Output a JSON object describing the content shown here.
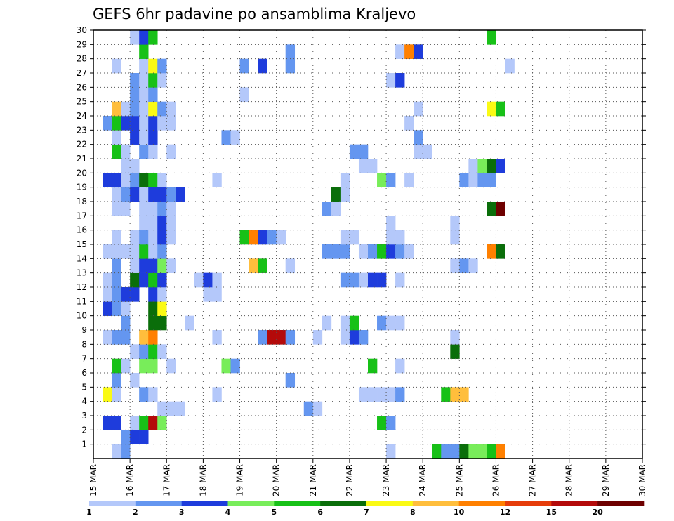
{
  "chart_data": {
    "type": "heatmap",
    "title": "GEFS 6hr padavine po ansamblima Kraljevo",
    "xlabel": "",
    "ylabel": "",
    "x_ticks": [
      "15 MAR",
      "16 MAR",
      "17 MAR",
      "18 MAR",
      "19 MAR",
      "20 MAR",
      "21 MAR",
      "22 MAR",
      "23 MAR",
      "24 MAR",
      "25 MAR",
      "26 MAR",
      "27 MAR",
      "28 MAR",
      "29 MAR",
      "30 MAR"
    ],
    "y_ticks": [
      1,
      2,
      3,
      4,
      5,
      6,
      7,
      8,
      9,
      10,
      11,
      12,
      13,
      14,
      15,
      16,
      17,
      18,
      19,
      20,
      21,
      22,
      23,
      24,
      25,
      26,
      27,
      28,
      29,
      30
    ],
    "xlim": [
      0,
      15
    ],
    "ylim": [
      0,
      30
    ],
    "grid": true,
    "legend_labels": [
      "1",
      "2",
      "3",
      "4",
      "5",
      "6",
      "7",
      "8",
      "10",
      "12",
      "15",
      "20"
    ],
    "legend_position": "bottom",
    "colors": [
      "#b4c8fa",
      "#6496f0",
      "#1e3cdc",
      "#78ed5a",
      "#17c117",
      "#0a6e0a",
      "#fafa14",
      "#ffbe3c",
      "#ff8000",
      "#e63c0a",
      "#b40a0a",
      "#6e0000"
    ],
    "members": [
      {
        "member": 1,
        "cells": [
          [
            1,
            0
          ],
          [
            2,
            0
          ],
          [
            2,
            1
          ],
          [
            31,
            0
          ],
          [
            36,
            4
          ],
          [
            37,
            1
          ],
          [
            38,
            1
          ],
          [
            39,
            5
          ],
          [
            40,
            3
          ],
          [
            41,
            3
          ],
          [
            42,
            4
          ],
          [
            43,
            8
          ]
        ]
      },
      {
        "member": 2,
        "cells": [
          [
            2,
            1
          ],
          [
            3,
            2
          ],
          [
            4,
            2
          ]
        ]
      },
      {
        "member": 3,
        "cells": [
          [
            0,
            2
          ],
          [
            1,
            2
          ],
          [
            3,
            0
          ],
          [
            4,
            4
          ],
          [
            5,
            10
          ],
          [
            6,
            3
          ],
          [
            30,
            4
          ],
          [
            31,
            1
          ]
        ]
      },
      {
        "member": 4,
        "cells": [
          [
            6,
            0
          ],
          [
            7,
            0
          ],
          [
            8,
            0
          ],
          [
            22,
            1
          ],
          [
            23,
            0
          ]
        ]
      },
      {
        "member": 5,
        "cells": [
          [
            0,
            6
          ],
          [
            1,
            0
          ],
          [
            4,
            1
          ],
          [
            5,
            0
          ],
          [
            12,
            0
          ],
          [
            28,
            0
          ],
          [
            29,
            0
          ],
          [
            30,
            0
          ],
          [
            31,
            0
          ],
          [
            32,
            1
          ],
          [
            37,
            4
          ],
          [
            38,
            7
          ],
          [
            39,
            7
          ]
        ]
      },
      {
        "member": 6,
        "cells": [
          [
            1,
            1
          ],
          [
            3,
            0
          ],
          [
            20,
            1
          ]
        ]
      },
      {
        "member": 7,
        "cells": [
          [
            1,
            4
          ],
          [
            2,
            0
          ],
          [
            4,
            3
          ],
          [
            5,
            3
          ],
          [
            7,
            0
          ],
          [
            13,
            3
          ],
          [
            14,
            1
          ],
          [
            29,
            4
          ],
          [
            32,
            0
          ]
        ]
      },
      {
        "member": 8,
        "cells": [
          [
            3,
            0
          ],
          [
            4,
            1
          ],
          [
            5,
            4
          ],
          [
            6,
            0
          ],
          [
            38,
            5
          ]
        ]
      },
      {
        "member": 9,
        "cells": [
          [
            0,
            0
          ],
          [
            1,
            1
          ],
          [
            2,
            1
          ],
          [
            4,
            7
          ],
          [
            5,
            8
          ],
          [
            12,
            0
          ],
          [
            17,
            1
          ],
          [
            18,
            10
          ],
          [
            19,
            10
          ],
          [
            20,
            1
          ],
          [
            23,
            0
          ],
          [
            26,
            0
          ],
          [
            27,
            2
          ],
          [
            28,
            1
          ],
          [
            38,
            0
          ]
        ]
      },
      {
        "member": 10,
        "cells": [
          [
            2,
            1
          ],
          [
            5,
            5
          ],
          [
            6,
            5
          ],
          [
            9,
            0
          ],
          [
            24,
            0
          ],
          [
            26,
            0
          ],
          [
            27,
            4
          ],
          [
            30,
            1
          ],
          [
            31,
            0
          ],
          [
            32,
            0
          ]
        ]
      },
      {
        "member": 11,
        "cells": [
          [
            0,
            2
          ],
          [
            1,
            1
          ],
          [
            2,
            0
          ],
          [
            5,
            5
          ],
          [
            6,
            6
          ]
        ]
      },
      {
        "member": 12,
        "cells": [
          [
            0,
            0
          ],
          [
            1,
            1
          ],
          [
            2,
            2
          ],
          [
            3,
            2
          ],
          [
            5,
            2
          ],
          [
            6,
            0
          ],
          [
            11,
            0
          ],
          [
            12,
            0
          ]
        ]
      },
      {
        "member": 13,
        "cells": [
          [
            0,
            0
          ],
          [
            1,
            1
          ],
          [
            3,
            5
          ],
          [
            4,
            2
          ],
          [
            5,
            4
          ],
          [
            6,
            2
          ],
          [
            10,
            0
          ],
          [
            11,
            2
          ],
          [
            12,
            0
          ],
          [
            26,
            1
          ],
          [
            27,
            1
          ],
          [
            28,
            0
          ],
          [
            29,
            2
          ],
          [
            30,
            2
          ],
          [
            32,
            0
          ]
        ]
      },
      {
        "member": 14,
        "cells": [
          [
            1,
            1
          ],
          [
            3,
            0
          ],
          [
            4,
            2
          ],
          [
            5,
            2
          ],
          [
            6,
            3
          ],
          [
            7,
            0
          ],
          [
            16,
            7
          ],
          [
            17,
            4
          ],
          [
            20,
            0
          ],
          [
            38,
            0
          ],
          [
            39,
            1
          ],
          [
            40,
            0
          ]
        ]
      },
      {
        "member": 15,
        "cells": [
          [
            0,
            0
          ],
          [
            1,
            0
          ],
          [
            2,
            0
          ],
          [
            3,
            0
          ],
          [
            4,
            4
          ],
          [
            5,
            0
          ],
          [
            6,
            1
          ],
          [
            24,
            1
          ],
          [
            25,
            1
          ],
          [
            26,
            1
          ],
          [
            28,
            0
          ],
          [
            29,
            1
          ],
          [
            30,
            4
          ],
          [
            31,
            2
          ],
          [
            32,
            1
          ],
          [
            33,
            0
          ],
          [
            42,
            8
          ],
          [
            43,
            5
          ]
        ]
      },
      {
        "member": 16,
        "cells": [
          [
            1,
            0
          ],
          [
            3,
            0
          ],
          [
            4,
            1
          ],
          [
            5,
            0
          ],
          [
            6,
            2
          ],
          [
            7,
            0
          ],
          [
            15,
            4
          ],
          [
            16,
            8
          ],
          [
            17,
            2
          ],
          [
            18,
            1
          ],
          [
            19,
            0
          ],
          [
            26,
            0
          ],
          [
            27,
            0
          ],
          [
            31,
            0
          ],
          [
            32,
            0
          ],
          [
            38,
            0
          ]
        ]
      },
      {
        "member": 17,
        "cells": [
          [
            4,
            0
          ],
          [
            5,
            0
          ],
          [
            6,
            2
          ],
          [
            7,
            0
          ],
          [
            31,
            0
          ],
          [
            38,
            0
          ]
        ]
      },
      {
        "member": 18,
        "cells": [
          [
            1,
            0
          ],
          [
            2,
            0
          ],
          [
            4,
            0
          ],
          [
            5,
            0
          ],
          [
            6,
            1
          ],
          [
            7,
            0
          ],
          [
            24,
            1
          ],
          [
            25,
            0
          ],
          [
            42,
            5
          ],
          [
            43,
            11
          ]
        ]
      },
      {
        "member": 19,
        "cells": [
          [
            1,
            0
          ],
          [
            2,
            1
          ],
          [
            3,
            2
          ],
          [
            4,
            0
          ],
          [
            5,
            2
          ],
          [
            6,
            2
          ],
          [
            7,
            1
          ],
          [
            8,
            2
          ],
          [
            25,
            5
          ],
          [
            26,
            0
          ]
        ]
      },
      {
        "member": 20,
        "cells": [
          [
            0,
            2
          ],
          [
            1,
            2
          ],
          [
            2,
            0
          ],
          [
            3,
            1
          ],
          [
            4,
            5
          ],
          [
            5,
            4
          ],
          [
            6,
            0
          ],
          [
            12,
            0
          ],
          [
            26,
            0
          ],
          [
            30,
            3
          ],
          [
            31,
            1
          ],
          [
            33,
            0
          ],
          [
            39,
            1
          ],
          [
            40,
            0
          ],
          [
            41,
            1
          ],
          [
            42,
            1
          ]
        ]
      },
      {
        "member": 21,
        "cells": [
          [
            2,
            0
          ],
          [
            3,
            0
          ],
          [
            28,
            0
          ],
          [
            29,
            0
          ],
          [
            40,
            0
          ],
          [
            41,
            3
          ],
          [
            42,
            5
          ],
          [
            43,
            2
          ]
        ]
      },
      {
        "member": 22,
        "cells": [
          [
            1,
            4
          ],
          [
            2,
            0
          ],
          [
            4,
            1
          ],
          [
            5,
            0
          ],
          [
            7,
            0
          ],
          [
            27,
            1
          ],
          [
            28,
            1
          ],
          [
            34,
            0
          ],
          [
            35,
            0
          ]
        ]
      },
      {
        "member": 23,
        "cells": [
          [
            1,
            0
          ],
          [
            3,
            2
          ],
          [
            4,
            0
          ],
          [
            5,
            2
          ],
          [
            13,
            1
          ],
          [
            14,
            0
          ],
          [
            34,
            1
          ]
        ]
      },
      {
        "member": 24,
        "cells": [
          [
            0,
            1
          ],
          [
            1,
            4
          ],
          [
            2,
            2
          ],
          [
            3,
            2
          ],
          [
            4,
            0
          ],
          [
            5,
            2
          ],
          [
            6,
            0
          ],
          [
            7,
            0
          ],
          [
            33,
            0
          ]
        ]
      },
      {
        "member": 25,
        "cells": [
          [
            1,
            7
          ],
          [
            2,
            0
          ],
          [
            3,
            1
          ],
          [
            4,
            0
          ],
          [
            5,
            6
          ],
          [
            6,
            1
          ],
          [
            7,
            0
          ],
          [
            34,
            0
          ],
          [
            42,
            6
          ],
          [
            43,
            4
          ]
        ]
      },
      {
        "member": 26,
        "cells": [
          [
            3,
            1
          ],
          [
            4,
            0
          ],
          [
            5,
            1
          ],
          [
            15,
            0
          ]
        ]
      },
      {
        "member": 27,
        "cells": [
          [
            3,
            1
          ],
          [
            4,
            0
          ],
          [
            5,
            4
          ],
          [
            6,
            0
          ],
          [
            31,
            0
          ],
          [
            32,
            2
          ]
        ]
      },
      {
        "member": 28,
        "cells": [
          [
            1,
            0
          ],
          [
            4,
            0
          ],
          [
            5,
            6
          ],
          [
            6,
            1
          ],
          [
            15,
            1
          ],
          [
            17,
            2
          ],
          [
            20,
            1
          ],
          [
            44,
            0
          ]
        ]
      },
      {
        "member": 29,
        "cells": [
          [
            4,
            4
          ],
          [
            20,
            1
          ],
          [
            32,
            0
          ],
          [
            33,
            8
          ],
          [
            34,
            2
          ]
        ]
      },
      {
        "member": 30,
        "cells": [
          [
            3,
            0
          ],
          [
            4,
            2
          ],
          [
            5,
            4
          ],
          [
            42,
            4
          ]
        ]
      }
    ]
  }
}
